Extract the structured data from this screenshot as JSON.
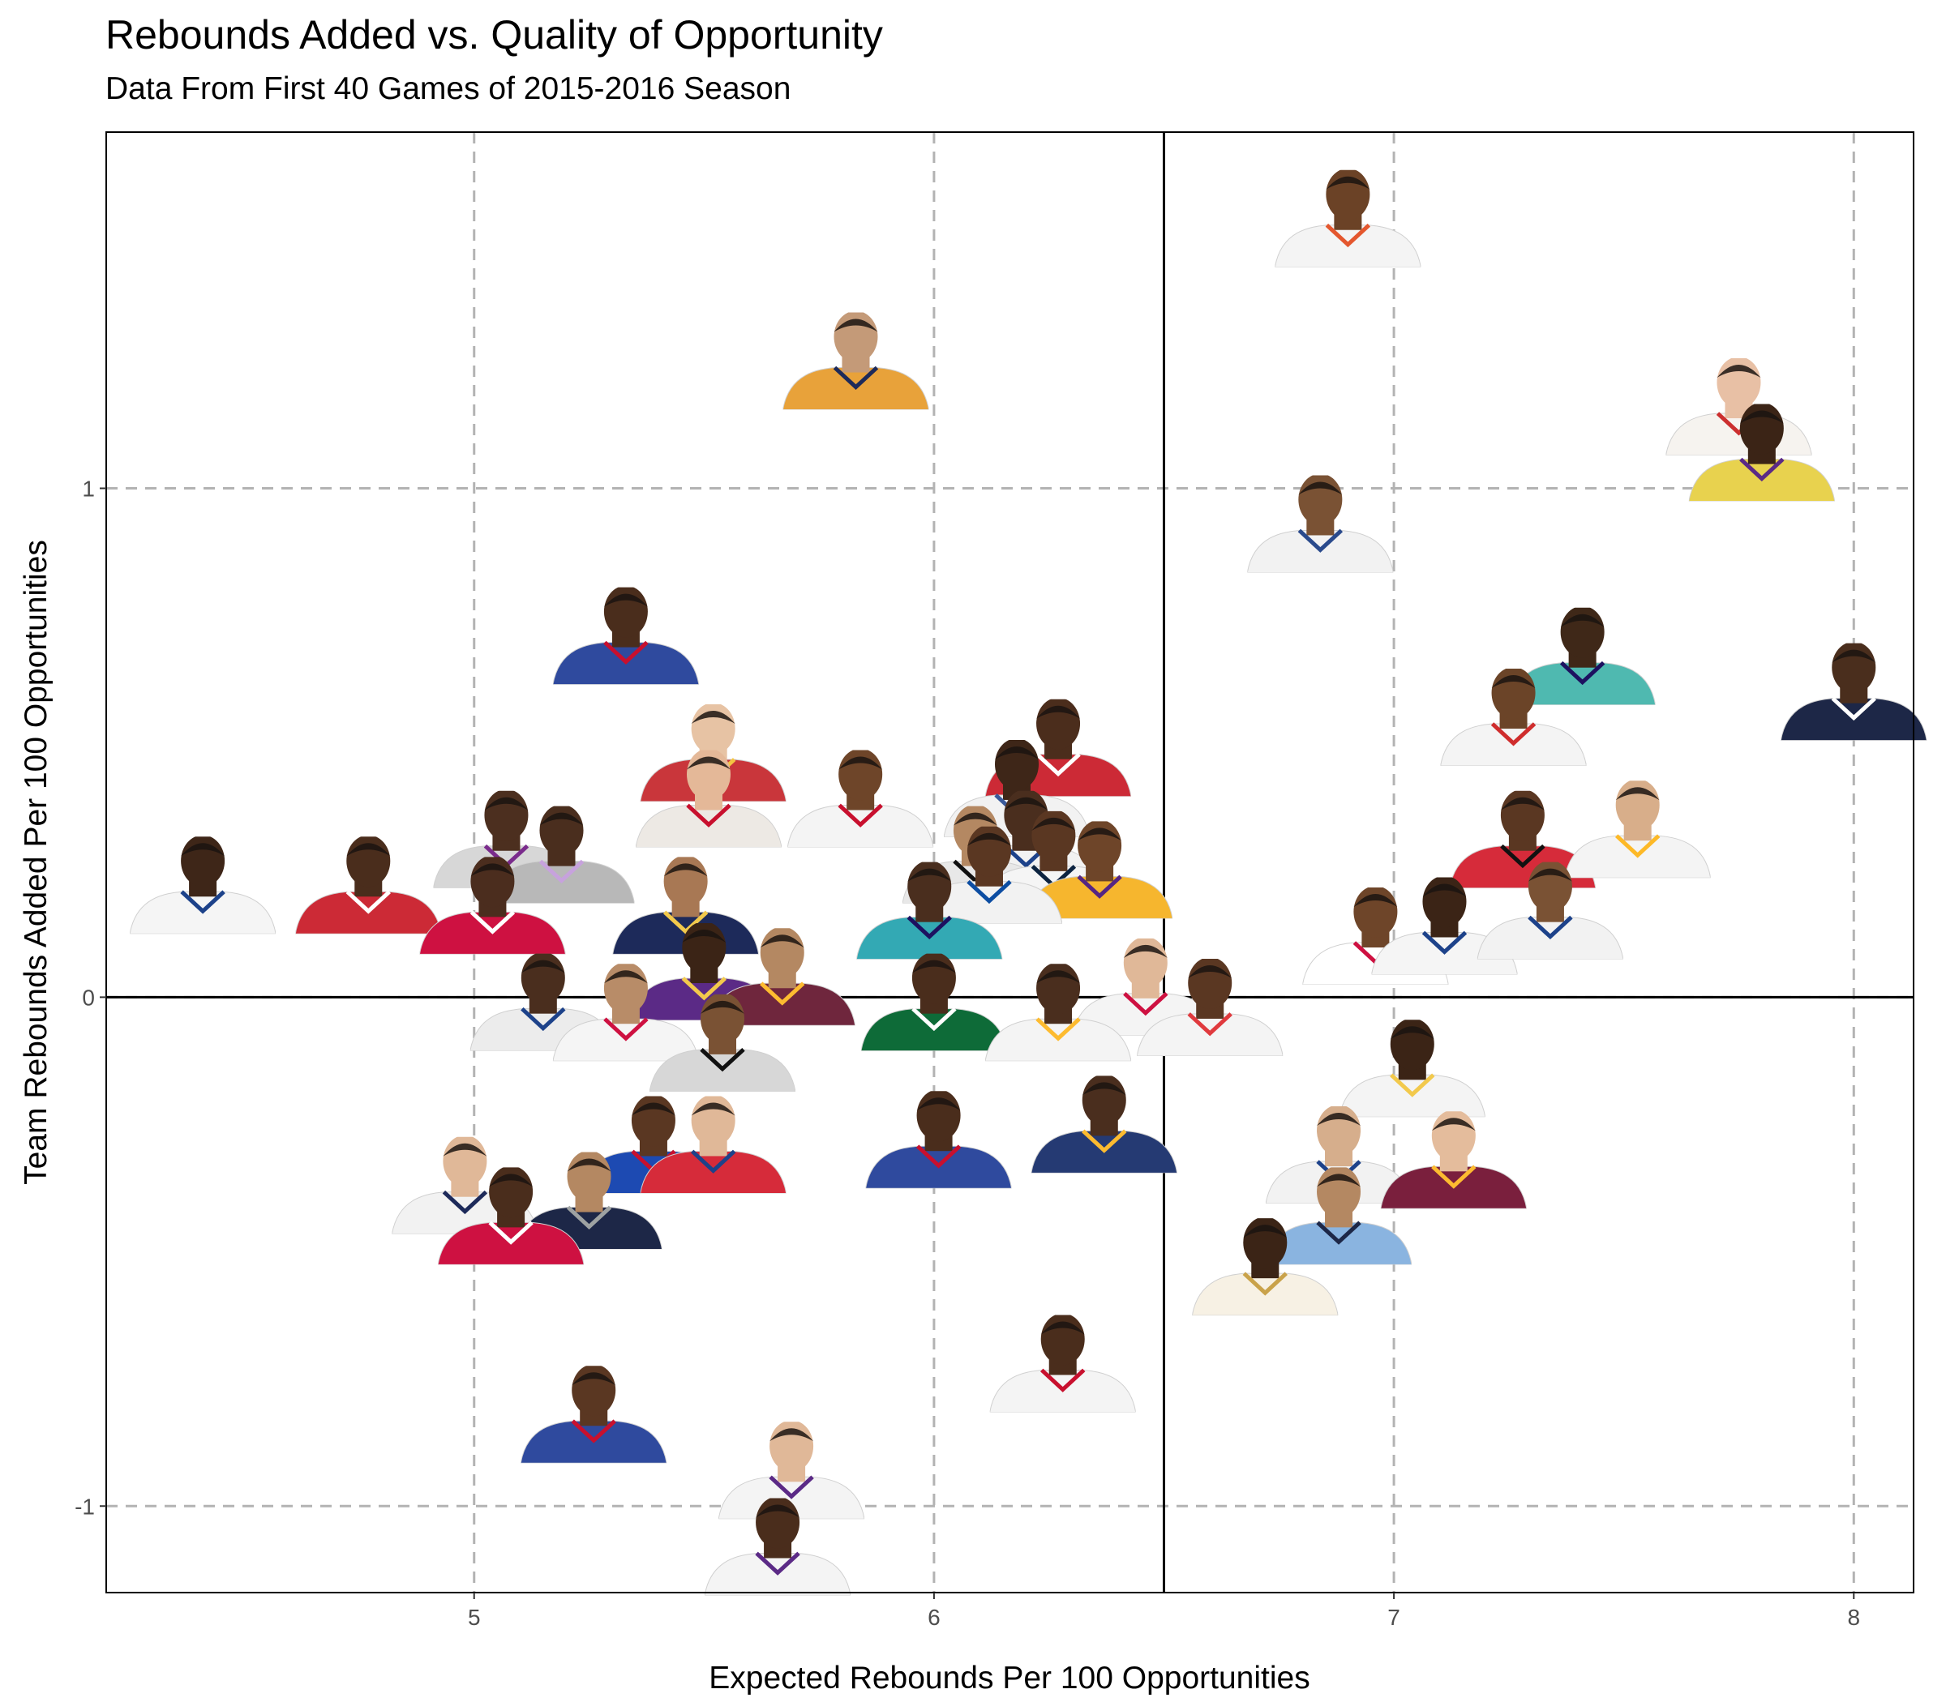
{
  "chart_data": {
    "type": "scatter",
    "title": "Rebounds Added vs. Quality of Opportunity",
    "subtitle": "Data From First 40 Games of 2015-2016 Season",
    "xlabel": "Expected Rebounds Per 100 Opportunities",
    "ylabel": "Team Rebounds Added Per 100 Opportunities",
    "xlim": [
      4.2,
      8.13
    ],
    "ylim": [
      -1.17,
      1.7
    ],
    "xticks": [
      5,
      6,
      7,
      8
    ],
    "xtick_labels": [
      "5",
      "6",
      "7",
      "8"
    ],
    "yticks": [
      -1,
      0,
      1
    ],
    "ytick_labels": [
      "-1",
      "0",
      "1"
    ],
    "grid": "dashed gray at major ticks",
    "reference_lines": {
      "x": 6.5,
      "y": 0
    },
    "marker": "player headshot",
    "points": [
      {
        "x": 6.9,
        "y": 1.53,
        "shirt": "#f4f4f4",
        "trim": "#e4572e",
        "skin": "#6b4226"
      },
      {
        "x": 5.83,
        "y": 1.25,
        "shirt": "#e8a23a",
        "trim": "#1d2a5a",
        "skin": "#c49a78"
      },
      {
        "x": 7.75,
        "y": 1.16,
        "shirt": "#f6f3ef",
        "trim": "#cc2f2f",
        "skin": "#e8c0a5"
      },
      {
        "x": 7.8,
        "y": 1.07,
        "shirt": "#e8d24e",
        "trim": "#5b2a86",
        "skin": "#3b2416"
      },
      {
        "x": 6.84,
        "y": 0.93,
        "shirt": "#f2f2f2",
        "trim": "#2a4a8c",
        "skin": "#7a5234"
      },
      {
        "x": 5.33,
        "y": 0.71,
        "shirt": "#2f4a9e",
        "trim": "#c8102e",
        "skin": "#4a2d1c"
      },
      {
        "x": 7.41,
        "y": 0.67,
        "shirt": "#4fb9b0",
        "trim": "#1d1160",
        "skin": "#3f2818"
      },
      {
        "x": 8.0,
        "y": 0.6,
        "shirt": "#1d2747",
        "trim": "#ffffff",
        "skin": "#4a2e1d"
      },
      {
        "x": 7.26,
        "y": 0.55,
        "shirt": "#f4f4f4",
        "trim": "#cf2d2d",
        "skin": "#6b4428"
      },
      {
        "x": 6.27,
        "y": 0.49,
        "shirt": "#cc2a36",
        "trim": "#ffffff",
        "skin": "#4b2d1c"
      },
      {
        "x": 5.52,
        "y": 0.48,
        "shirt": "#c9363b",
        "trim": "#f4c542",
        "skin": "#e7c3a4"
      },
      {
        "x": 5.84,
        "y": 0.39,
        "shirt": "#f4f4f4",
        "trim": "#c8102e",
        "skin": "#6e4529"
      },
      {
        "x": 5.51,
        "y": 0.39,
        "shirt": "#ede9e4",
        "trim": "#c8102e",
        "skin": "#e4b898"
      },
      {
        "x": 6.18,
        "y": 0.41,
        "shirt": "#f2f2f2",
        "trim": "#3a5a9b",
        "skin": "#3e2618"
      },
      {
        "x": 5.07,
        "y": 0.31,
        "shirt": "#d7d7d7",
        "trim": "#7a2b8c",
        "skin": "#4c2f1f"
      },
      {
        "x": 5.19,
        "y": 0.28,
        "shirt": "#b8b8b8",
        "trim": "#c7a2dd",
        "skin": "#4a2e1e"
      },
      {
        "x": 4.41,
        "y": 0.22,
        "shirt": "#f5f5f5",
        "trim": "#1d428a",
        "skin": "#3e2618"
      },
      {
        "x": 4.77,
        "y": 0.22,
        "shirt": "#cc2a36",
        "trim": "#ffffff",
        "skin": "#4a2d1c"
      },
      {
        "x": 5.46,
        "y": 0.18,
        "shirt": "#1d2a5a",
        "trim": "#f2c94c",
        "skin": "#a87854"
      },
      {
        "x": 5.04,
        "y": 0.18,
        "shirt": "#ce1141",
        "trim": "#ffffff",
        "skin": "#4b2d1e"
      },
      {
        "x": 7.28,
        "y": 0.31,
        "shirt": "#d62b3a",
        "trim": "#111111",
        "skin": "#5a3722"
      },
      {
        "x": 7.53,
        "y": 0.33,
        "shirt": "#f4f4f4",
        "trim": "#fdb927",
        "skin": "#d8ae8a"
      },
      {
        "x": 6.2,
        "y": 0.31,
        "shirt": "#f2f2f2",
        "trim": "#1d428a",
        "skin": "#4a2e1e"
      },
      {
        "x": 6.09,
        "y": 0.28,
        "shirt": "#e8e8e8",
        "trim": "#111111",
        "skin": "#b48862"
      },
      {
        "x": 6.26,
        "y": 0.27,
        "shirt": "#f5f5f5",
        "trim": "#0c2340",
        "skin": "#5a3722"
      },
      {
        "x": 6.36,
        "y": 0.25,
        "shirt": "#f6b62e",
        "trim": "#552583",
        "skin": "#6e4529"
      },
      {
        "x": 6.12,
        "y": 0.24,
        "shirt": "#f2f2f2",
        "trim": "#0c4da2",
        "skin": "#5a3722"
      },
      {
        "x": 5.99,
        "y": 0.17,
        "shirt": "#33a9b4",
        "trim": "#1d1160",
        "skin": "#4a2e1e"
      },
      {
        "x": 6.96,
        "y": 0.12,
        "shirt": "#ffffff",
        "trim": "#ce1141",
        "skin": "#6e4529"
      },
      {
        "x": 7.11,
        "y": 0.14,
        "shirt": "#f5f5f5",
        "trim": "#1d428a",
        "skin": "#3b2416"
      },
      {
        "x": 7.34,
        "y": 0.17,
        "shirt": "#f2f2f2",
        "trim": "#1d428a",
        "skin": "#7a5234"
      },
      {
        "x": 5.5,
        "y": 0.05,
        "shirt": "#5b2a86",
        "trim": "#f2c94c",
        "skin": "#3b2416"
      },
      {
        "x": 5.67,
        "y": 0.04,
        "shirt": "#6f263d",
        "trim": "#fdbb30",
        "skin": "#b48862"
      },
      {
        "x": 6.46,
        "y": 0.02,
        "shirt": "#f4f4f4",
        "trim": "#ce1141",
        "skin": "#e0b898"
      },
      {
        "x": 5.15,
        "y": -0.01,
        "shirt": "#ececec",
        "trim": "#1d428a",
        "skin": "#4a2e1e"
      },
      {
        "x": 5.33,
        "y": -0.03,
        "shirt": "#f5f5f5",
        "trim": "#ce1141",
        "skin": "#b88c68"
      },
      {
        "x": 6.0,
        "y": -0.01,
        "shirt": "#0e6b38",
        "trim": "#ffffff",
        "skin": "#4a2d1c"
      },
      {
        "x": 6.27,
        "y": -0.03,
        "shirt": "#f4f4f4",
        "trim": "#fdbb30",
        "skin": "#4a2e1e"
      },
      {
        "x": 6.6,
        "y": -0.02,
        "shirt": "#f4f4f4",
        "trim": "#e03a3e",
        "skin": "#5a3722"
      },
      {
        "x": 5.54,
        "y": -0.09,
        "shirt": "#d7d7d7",
        "trim": "#111111",
        "skin": "#7a5234"
      },
      {
        "x": 7.04,
        "y": -0.14,
        "shirt": "#f4f4f4",
        "trim": "#f2c94c",
        "skin": "#3b2416"
      },
      {
        "x": 6.01,
        "y": -0.28,
        "shirt": "#2f4a9e",
        "trim": "#c8102e",
        "skin": "#4a2d1c"
      },
      {
        "x": 6.37,
        "y": -0.25,
        "shirt": "#253a73",
        "trim": "#fdbb30",
        "skin": "#4a2e1e"
      },
      {
        "x": 5.39,
        "y": -0.29,
        "shirt": "#1d4ab2",
        "trim": "#c8102e",
        "skin": "#5a3722"
      },
      {
        "x": 5.52,
        "y": -0.29,
        "shirt": "#d62b3a",
        "trim": "#1d428a",
        "skin": "#e0b898"
      },
      {
        "x": 6.88,
        "y": -0.31,
        "shirt": "#f2f2f2",
        "trim": "#1d428a",
        "skin": "#d6ae8c"
      },
      {
        "x": 7.13,
        "y": -0.32,
        "shirt": "#7a1f3d",
        "trim": "#fdbb30",
        "skin": "#e4bc9c"
      },
      {
        "x": 4.98,
        "y": -0.37,
        "shirt": "#f2f2f2",
        "trim": "#1d2a5a",
        "skin": "#e0b898"
      },
      {
        "x": 5.25,
        "y": -0.4,
        "shirt": "#1d2747",
        "trim": "#9ea2a2",
        "skin": "#b48862"
      },
      {
        "x": 5.08,
        "y": -0.43,
        "shirt": "#ce1141",
        "trim": "#ffffff",
        "skin": "#4a2d1c"
      },
      {
        "x": 6.88,
        "y": -0.43,
        "shirt": "#8ab4e0",
        "trim": "#1d2747",
        "skin": "#b48862"
      },
      {
        "x": 6.72,
        "y": -0.53,
        "shirt": "#f7f1e4",
        "trim": "#c9a24a",
        "skin": "#3b2416"
      },
      {
        "x": 6.28,
        "y": -0.72,
        "shirt": "#f4f4f4",
        "trim": "#c8102e",
        "skin": "#4a2d1c"
      },
      {
        "x": 5.26,
        "y": -0.82,
        "shirt": "#2f4a9e",
        "trim": "#c8102e",
        "skin": "#5a3722"
      },
      {
        "x": 5.69,
        "y": -0.93,
        "shirt": "#f4f4f4",
        "trim": "#5b2a86",
        "skin": "#e0b898"
      },
      {
        "x": 5.66,
        "y": -1.08,
        "shirt": "#f4f4f4",
        "trim": "#5b2a86",
        "skin": "#4a2d1c"
      }
    ]
  }
}
